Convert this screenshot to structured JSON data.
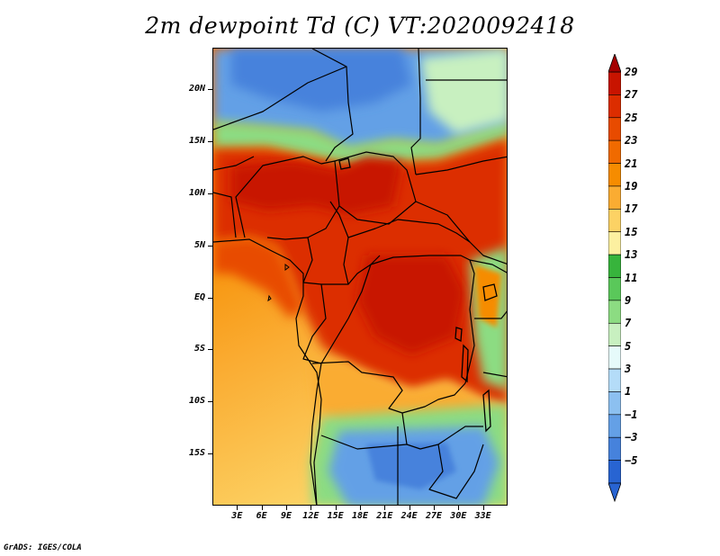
{
  "title": "2m dewpoint Td (C) VT:2020092418",
  "credit": "GrADS: IGES/COLA",
  "map": {
    "variable": "2m dewpoint",
    "units": "C",
    "valid_time": "2020092418",
    "lon_range": [
      0,
      36
    ],
    "lat_range": [
      -20,
      24
    ],
    "lat_ticks": [
      {
        "value": 20,
        "label": "20N"
      },
      {
        "value": 15,
        "label": "15N"
      },
      {
        "value": 10,
        "label": "10N"
      },
      {
        "value": 5,
        "label": "5N"
      },
      {
        "value": 0,
        "label": "EQ"
      },
      {
        "value": -5,
        "label": "5S"
      },
      {
        "value": -10,
        "label": "10S"
      },
      {
        "value": -15,
        "label": "15S"
      }
    ],
    "lon_ticks": [
      {
        "value": 3,
        "label": "3E"
      },
      {
        "value": 6,
        "label": "6E"
      },
      {
        "value": 9,
        "label": "9E"
      },
      {
        "value": 12,
        "label": "12E"
      },
      {
        "value": 15,
        "label": "15E"
      },
      {
        "value": 18,
        "label": "18E"
      },
      {
        "value": 21,
        "label": "21E"
      },
      {
        "value": 24,
        "label": "24E"
      },
      {
        "value": 27,
        "label": "27E"
      },
      {
        "value": 30,
        "label": "30E"
      },
      {
        "value": 33,
        "label": "33E"
      }
    ]
  },
  "colorbar": {
    "labels": [
      "29",
      "27",
      "25",
      "23",
      "21",
      "19",
      "17",
      "15",
      "13",
      "11",
      "9",
      "7",
      "5",
      "3",
      "1",
      "−1",
      "−3",
      "−5"
    ],
    "colors": [
      "#a50000",
      "#c81400",
      "#dc2d00",
      "#e84b00",
      "#f06a00",
      "#f68c00",
      "#faac32",
      "#fcd264",
      "#fcf0a0",
      "#37b43c",
      "#5ac85a",
      "#8cdc82",
      "#c8f0c0",
      "#e6fafa",
      "#b4dcf8",
      "#8cc0f0",
      "#64a0e6",
      "#4682dc",
      "#2864d2"
    ]
  }
}
